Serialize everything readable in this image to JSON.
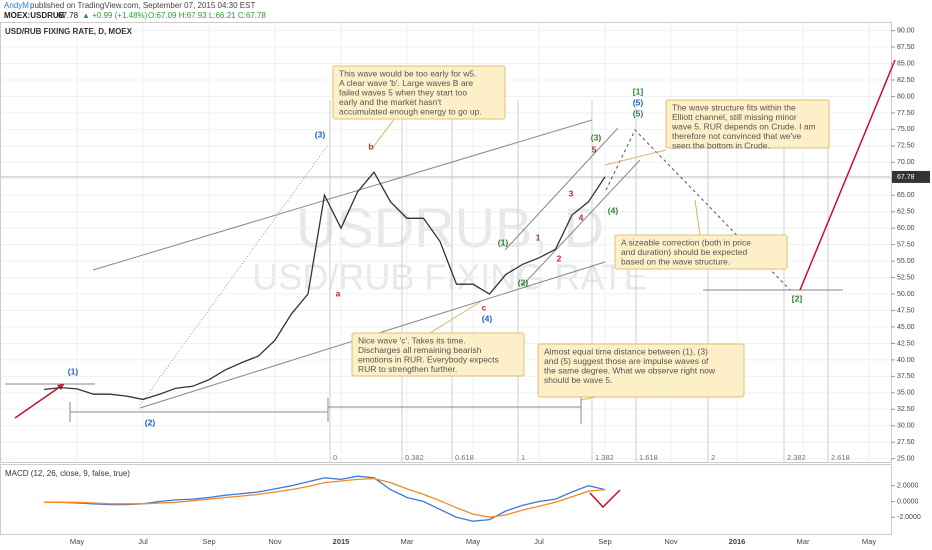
{
  "header": {
    "publisher": "AndyM",
    "published": "published on TradingView.com, September 07, 2015 04:30 EST",
    "ticker": "MOEX:USDRUB",
    "price": 67.78,
    "change": "▲ +0.99 (+1.48%)",
    "ohlc": "O:67.09 H:67.93 L:66.21 C:67.78"
  },
  "chart_data": [
    {
      "type": "line",
      "title": "USD/RUB FIXING RATE, D, MOEX",
      "watermark": [
        "USDRUB, D",
        "USD/RUB FIXING RATE"
      ],
      "categories": [
        null,
        null,
        "May",
        null,
        null,
        null,
        "Jul",
        null,
        null,
        null,
        "Sep",
        null,
        null,
        null,
        "Nov",
        null,
        null,
        null,
        "2015",
        null,
        null,
        null,
        "Mar",
        null,
        null,
        null,
        "May",
        null,
        null,
        null,
        "Jul",
        null,
        null,
        null,
        "Sep",
        null,
        null,
        null,
        "Nov",
        null,
        null,
        null,
        "2016",
        null,
        null,
        null,
        "Mar",
        null,
        null,
        null,
        "May",
        null
      ],
      "series": [
        {
          "color": "#333333",
          "values": [
            35.5,
            35.8,
            35.6,
            34.8,
            34.8,
            34.5,
            34.0,
            34.8,
            35.7,
            36.0,
            37.0,
            38.5,
            39.6,
            40.6,
            43.0,
            47.0,
            50.0,
            65.0,
            60.0,
            65.5,
            68.5,
            64.0,
            61.5,
            61.5,
            58.0,
            51.5,
            51.5,
            50.0,
            53.0,
            54.5,
            55.5,
            56.8,
            62.0,
            64.0,
            67.78,
            null,
            null,
            null,
            null,
            null,
            null,
            null,
            null,
            null,
            null,
            null,
            null,
            null,
            null,
            null,
            null,
            null
          ]
        }
      ],
      "last_price": 67.78,
      "ylim": [
        24.5,
        91
      ],
      "yticks": [
        {
          "value": 25,
          "label": "25.00"
        },
        {
          "value": 27.5,
          "label": "27.50"
        },
        {
          "value": 30,
          "label": "30.00"
        },
        {
          "value": 32.5,
          "label": "32.50"
        },
        {
          "value": 35,
          "label": "35.00"
        },
        {
          "value": 37.5,
          "label": "37.50"
        },
        {
          "value": 40,
          "label": "40.00"
        },
        {
          "value": 42.5,
          "label": "42.50"
        },
        {
          "value": 45,
          "label": "45.00"
        },
        {
          "value": 47.5,
          "label": "47.50"
        },
        {
          "value": 50,
          "label": "50.00"
        },
        {
          "value": 52.5,
          "label": "52.50"
        },
        {
          "value": 55,
          "label": "55.00"
        },
        {
          "value": 57.5,
          "label": "57.50"
        },
        {
          "value": 60,
          "label": "60.00"
        },
        {
          "value": 62.5,
          "label": "62.50"
        },
        {
          "value": 65,
          "label": "65.00"
        },
        {
          "value": 67.5,
          "label": "67.50"
        },
        {
          "value": 70,
          "label": "70.00"
        },
        {
          "value": 72.5,
          "label": "72.50"
        },
        {
          "value": 75,
          "label": "75.00"
        },
        {
          "value": 77.5,
          "label": "77.50"
        },
        {
          "value": 80,
          "label": "80.00"
        },
        {
          "value": 82.5,
          "label": "82.50"
        },
        {
          "value": 85,
          "label": "85.00"
        },
        {
          "value": 87.5,
          "label": "87.50"
        },
        {
          "value": 90,
          "label": "90.00"
        }
      ],
      "grid": true,
      "fib_levels": [
        0,
        0.382,
        0.618,
        1,
        1.382,
        1.618,
        2,
        2.382,
        2.618
      ],
      "wave_labels": [
        "(1)",
        "(2)",
        "(3)",
        "(4)",
        "(5)",
        "[1]",
        "(5)",
        "b",
        "a",
        "c",
        "(3)",
        "5",
        "3",
        "4",
        "2",
        "1",
        "(1)",
        "(2)",
        "(4)",
        "[2]"
      ],
      "annotations": [
        [
          "This wave would be too early for w5.",
          "A clear wave 'b'. Large waves B are",
          "failed waves 5 when they start too",
          "early and the market hasn't",
          "accumulated enough energy to go up."
        ],
        [
          "The wave structure fits within the",
          "Elliott channel, still missing minor",
          "wave 5. RUR depends on Crude. I am",
          "therefore not convinced that we've",
          "seen the bottom in Crude."
        ],
        [
          "A sizeable correction (both in price",
          "and duration) should be expected",
          "based on the wave structure."
        ],
        [
          "Nice wave 'c'. Takes its time.",
          "Discharges all remaining bearish",
          "emotions in RUR. Everybody expects",
          "RUR to strengthen further."
        ],
        [
          "Almost equal time distance between (1), (3)",
          "and (5) suggest those are impulse waves of",
          "the same degree. What we observe right now",
          "should be wave 5."
        ]
      ]
    },
    {
      "type": "line",
      "title": "MACD (12, 26, close, 9, false, true)",
      "series": [
        {
          "color": "#3a7bd5",
          "values": [
            -0.1,
            -0.1,
            -0.2,
            -0.3,
            -0.4,
            -0.4,
            -0.3,
            0.0,
            0.2,
            0.3,
            0.5,
            0.8,
            1.0,
            1.2,
            1.6,
            2.0,
            2.5,
            3.0,
            2.8,
            3.2,
            3.0,
            1.5,
            0.5,
            0.0,
            -1.0,
            -2.0,
            -2.5,
            -2.3,
            -1.2,
            -0.5,
            0.0,
            0.3,
            1.2,
            2.0,
            1.5,
            null,
            null,
            null,
            null,
            null,
            null,
            null,
            null,
            null,
            null,
            null,
            null,
            null,
            null,
            null,
            null,
            null
          ]
        },
        {
          "color": "#f08a24",
          "values": [
            -0.1,
            -0.1,
            -0.1,
            -0.2,
            -0.3,
            -0.3,
            -0.3,
            -0.2,
            -0.1,
            0.1,
            0.3,
            0.5,
            0.7,
            0.9,
            1.2,
            1.5,
            1.9,
            2.4,
            2.6,
            2.8,
            2.9,
            2.4,
            1.6,
            0.9,
            0.1,
            -0.8,
            -1.6,
            -2.0,
            -1.7,
            -1.1,
            -0.6,
            -0.1,
            0.6,
            1.3,
            1.5,
            null,
            null,
            null,
            null,
            null,
            null,
            null,
            null,
            null,
            null,
            null,
            null,
            null,
            null,
            null,
            null,
            null
          ]
        }
      ],
      "ylim": [
        -4,
        4.5
      ],
      "yticks": [
        {
          "value": 2,
          "label": "2.0000"
        },
        {
          "value": 0,
          "label": "0.0000"
        },
        {
          "value": -2,
          "label": "-2.0000"
        }
      ]
    }
  ]
}
